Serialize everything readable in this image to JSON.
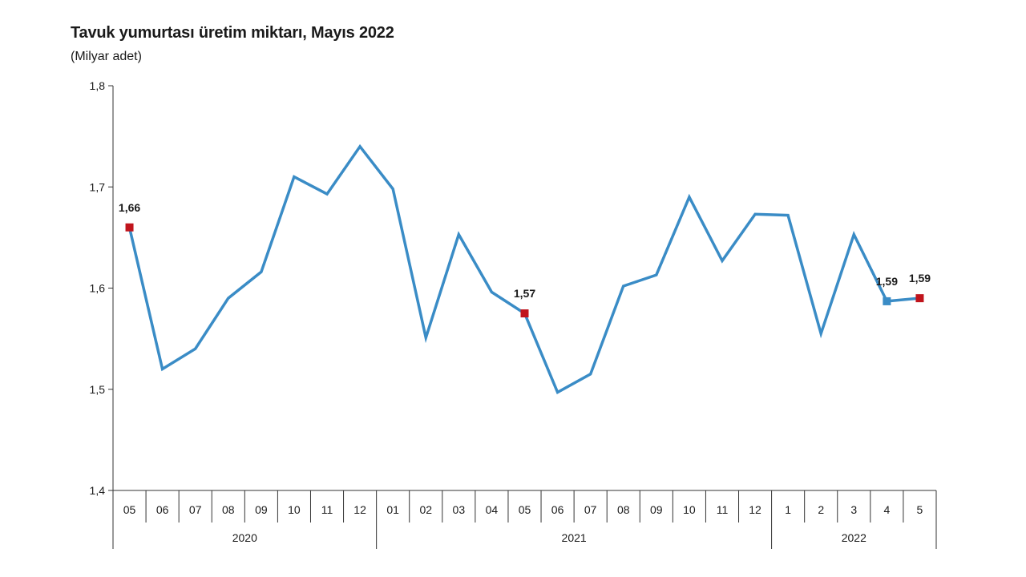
{
  "chart_data": {
    "type": "line",
    "title": "Tavuk yumurtası üretim miktarı, Mayıs 2022",
    "ylabel": "(Milyar adet)",
    "xlabel": "",
    "ylim": [
      1.4,
      1.8
    ],
    "yticks": [
      "1,4",
      "1,5",
      "1,6",
      "1,7",
      "1,8"
    ],
    "ytick_values": [
      1.4,
      1.5,
      1.6,
      1.7,
      1.8
    ],
    "grid": false,
    "legend": "none",
    "categories": [
      "05",
      "06",
      "07",
      "08",
      "09",
      "10",
      "11",
      "12",
      "01",
      "02",
      "03",
      "04",
      "05",
      "06",
      "07",
      "08",
      "09",
      "10",
      "11",
      "12",
      "1",
      "2",
      "3",
      "4",
      "5"
    ],
    "years": [
      {
        "label": "2020",
        "count": 8
      },
      {
        "label": "2021",
        "count": 12
      },
      {
        "label": "2022",
        "count": 5
      }
    ],
    "series": [
      {
        "values": [
          1.66,
          1.52,
          1.54,
          1.59,
          1.616,
          1.71,
          1.693,
          1.74,
          1.698,
          1.551,
          1.653,
          1.596,
          1.575,
          1.497,
          1.515,
          1.602,
          1.613,
          1.69,
          1.627,
          1.673,
          1.672,
          1.555,
          1.653,
          1.587,
          1.59
        ]
      }
    ],
    "data_labels": [
      {
        "index": 0,
        "text": "1,66"
      },
      {
        "index": 12,
        "text": "1,57"
      },
      {
        "index": 23,
        "text": "1,59"
      },
      {
        "index": 24,
        "text": "1,59"
      }
    ],
    "line_color": "#3a8cc6",
    "highlight_color": "#c0141c",
    "axis_color": "#333333"
  }
}
